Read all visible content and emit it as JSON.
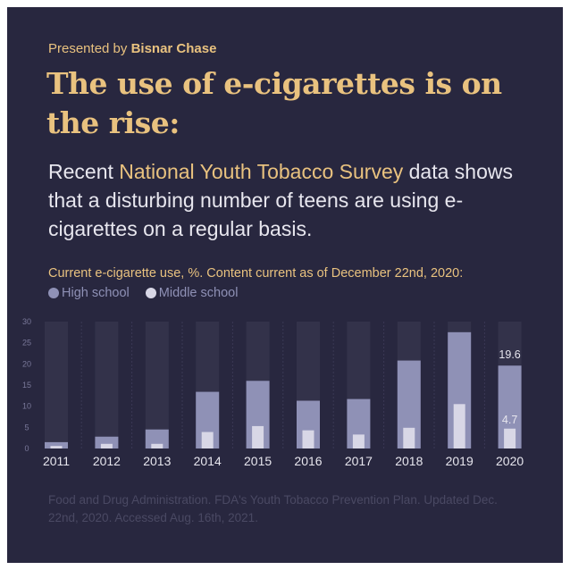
{
  "header": {
    "presented_prefix": "Presented by",
    "presented_brand": "Bisnar Chase",
    "headline": "The use of e-cigarettes is on the rise:"
  },
  "subtitle": {
    "part1": "Recent ",
    "highlight": "National Youth Tobacco Survey",
    "part2": " data shows that a disturbing number of teens are using e-cigarettes on a regular basis."
  },
  "colors": {
    "background": "#28273f",
    "accent": "#e9c27f",
    "high_school": "#8f91b6",
    "middle_school": "#d8d7e6",
    "track": "#33324a"
  },
  "chart_data": {
    "type": "bar",
    "title": "Current e-cigarette use, %. Content current as of December 22nd, 2020:",
    "xlabel": "",
    "ylabel": "",
    "ylim": [
      0,
      30
    ],
    "yticks": [
      0,
      5,
      10,
      15,
      20,
      25,
      30
    ],
    "grid": false,
    "legend": "top-left",
    "categories": [
      "2011",
      "2012",
      "2013",
      "2014",
      "2015",
      "2016",
      "2017",
      "2018",
      "2019",
      "2020"
    ],
    "series": [
      {
        "name": "High school",
        "values": [
          1.5,
          2.8,
          4.5,
          13.4,
          16.0,
          11.3,
          11.7,
          20.8,
          27.5,
          19.6
        ]
      },
      {
        "name": "Middle school",
        "values": [
          0.6,
          1.1,
          1.1,
          3.9,
          5.3,
          4.3,
          3.3,
          4.9,
          10.5,
          4.7
        ]
      }
    ],
    "data_labels": {
      "high_school_2020": "19.6",
      "middle_school_2020": "4.7"
    }
  },
  "source": "Food and Drug Administration. FDA's Youth Tobacco Prevention Plan. Updated Dec. 22nd, 2020. Accessed Aug. 16th, 2021."
}
